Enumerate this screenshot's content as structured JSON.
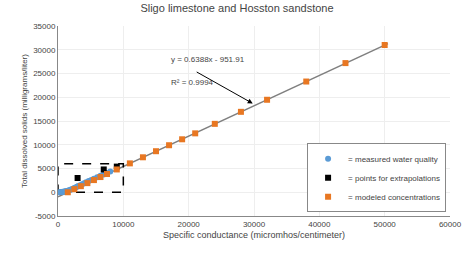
{
  "chart_data": {
    "type": "scatter",
    "title": "Sligo limestone and Hosston sandstone",
    "xlabel": "Specific conductance (micromhos/centimeter)",
    "ylabel": "Total dissolved solids (milligrams/liter)",
    "xlim": [
      0,
      60000
    ],
    "ylim": [
      -5000,
      35000
    ],
    "xticks": [
      0,
      10000,
      20000,
      30000,
      40000,
      50000,
      60000
    ],
    "yticks": [
      -5000,
      0,
      5000,
      10000,
      15000,
      20000,
      25000,
      30000,
      35000
    ],
    "grid": true,
    "legend": "lower right",
    "series": [
      {
        "type": "line",
        "color": "#7f7f7f",
        "line_style": "solid",
        "x": [
          0,
          50500
        ],
        "values": [
          -952,
          31300
        ]
      },
      {
        "type": "line",
        "color": "#000000",
        "line_style": "dashed",
        "x": [
          0,
          10000,
          10000,
          0,
          0
        ],
        "values": [
          0,
          0,
          6000,
          6000,
          0
        ]
      },
      {
        "name": "= measured water quality",
        "type": "scatter",
        "color": "#5b9bd5",
        "marker": "circle",
        "x": [
          200,
          400,
          600,
          700,
          900,
          1000,
          1100,
          1200,
          1400,
          1500,
          1700,
          1900,
          2100,
          2300,
          2500,
          2700,
          2900,
          3100,
          3400,
          3700,
          4000,
          4300,
          4700,
          5100,
          5500,
          6000,
          6500,
          7000,
          7500,
          8000
        ],
        "values": [
          0,
          30,
          60,
          80,
          120,
          150,
          180,
          210,
          280,
          340,
          430,
          540,
          640,
          760,
          890,
          1020,
          1150,
          1300,
          1500,
          1700,
          1900,
          2100,
          2350,
          2600,
          2850,
          3150,
          3450,
          3750,
          4050,
          4350
        ]
      },
      {
        "name": "= points for extrapolations",
        "type": "scatter",
        "color": "#000000",
        "marker": "square",
        "x": [
          3000,
          7000,
          9000
        ],
        "values": [
          3000,
          4800,
          5400
        ]
      },
      {
        "name": "= modeled concentrations",
        "type": "scatter",
        "color": "#e87722",
        "marker": "square",
        "x": [
          1500,
          2500,
          3500,
          4500,
          5500,
          6500,
          7500,
          9000,
          11000,
          13000,
          15000,
          17000,
          19000,
          21000,
          24000,
          28000,
          32000,
          38000,
          44000,
          50000
        ],
        "values": [
          0,
          650,
          1280,
          1920,
          2560,
          3200,
          3840,
          4800,
          6080,
          7360,
          8640,
          9900,
          11150,
          12400,
          14400,
          16930,
          19470,
          23310,
          27190,
          31000
        ]
      }
    ],
    "annotations": [
      {
        "text": "y = 0.6388x - 951.91",
        "x": 17000,
        "y": 26500
      },
      {
        "text": "R² = 0.9994",
        "x": 17000,
        "y": 24500
      }
    ],
    "arrow": {
      "x": 29800,
      "y": 18700,
      "from_x": 21000,
      "from_y": 25500
    }
  }
}
